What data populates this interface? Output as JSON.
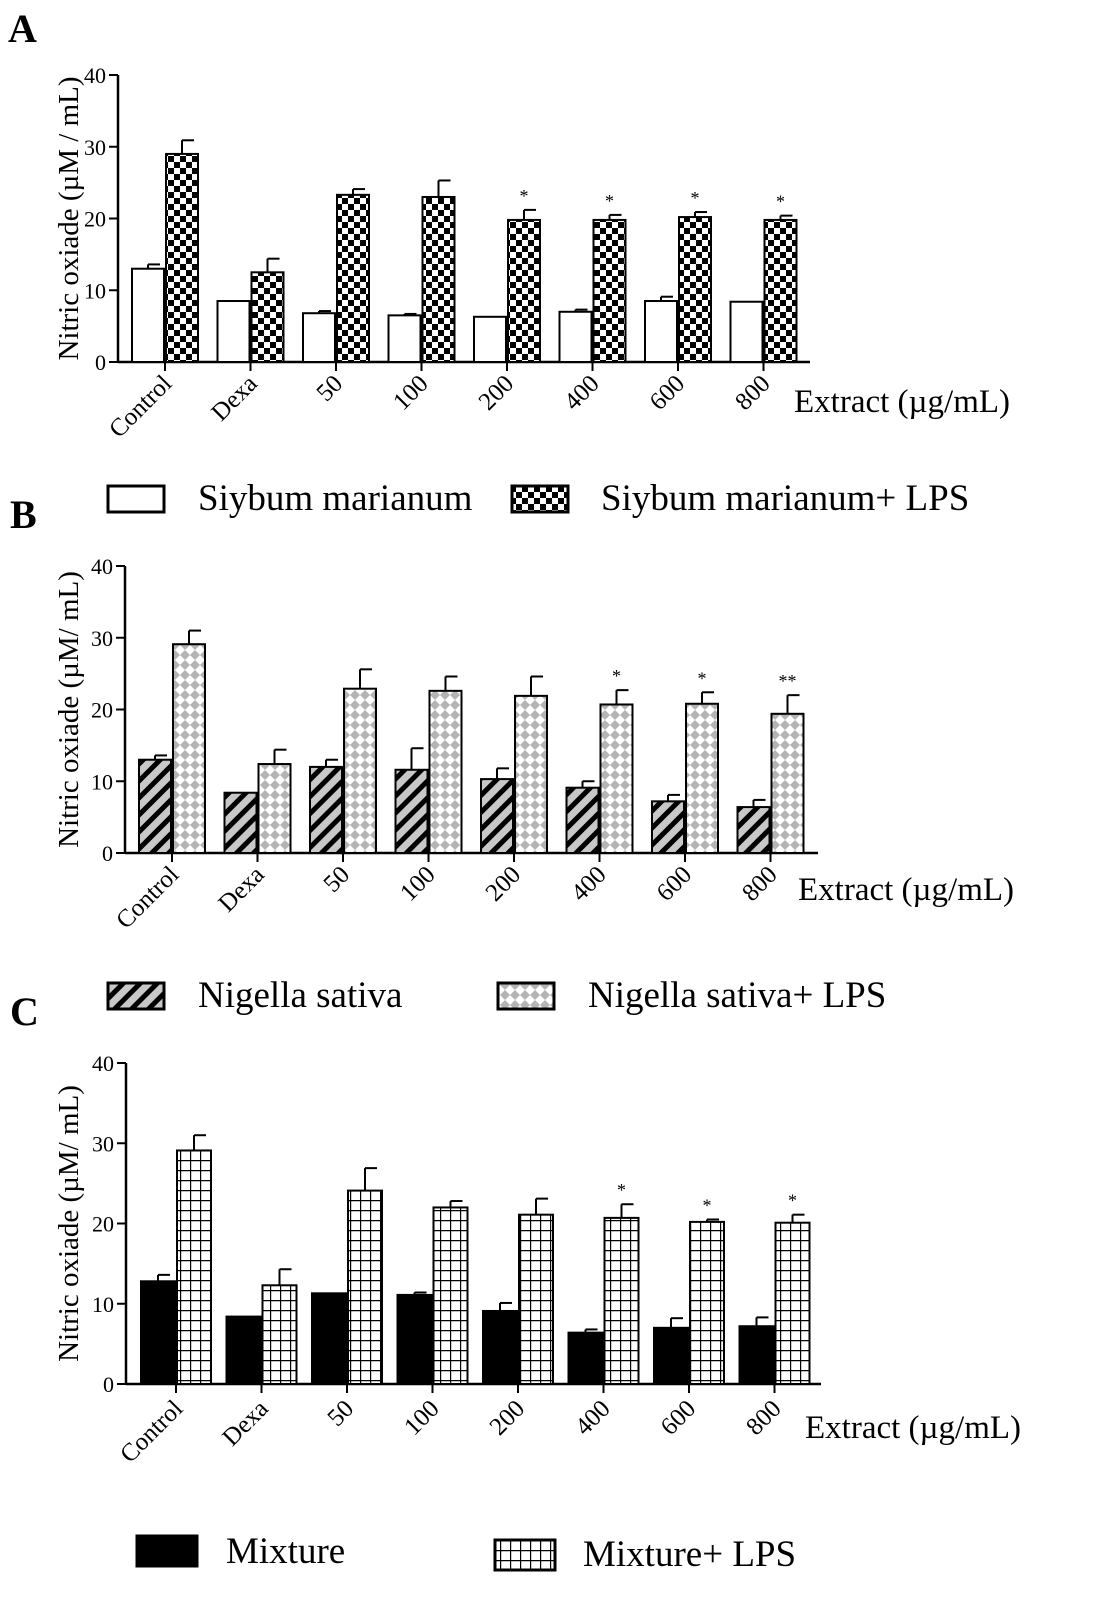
{
  "figure": {
    "panels": [
      {
        "letter": "A",
        "ylabel": "Nitric oxiade (µM / mL)",
        "yticks": [
          "0",
          "10",
          "20",
          "30",
          "40"
        ],
        "xunit": "Extract (µg/mL)",
        "legend": [
          "Siybum marianum",
          "Siybum marianum+ LPS"
        ]
      },
      {
        "letter": "B",
        "ylabel": "Nitric oxiade (µM/ mL)",
        "yticks": [
          "0",
          "10",
          "20",
          "30",
          "40"
        ],
        "xunit": "Extract (µg/mL)",
        "legend": [
          "Nigella sativa",
          "Nigella sativa+ LPS"
        ]
      },
      {
        "letter": "C",
        "ylabel": "Nitric oxiade (µM/ mL)",
        "yticks": [
          "0",
          "10",
          "20",
          "30",
          "40"
        ],
        "xunit": "Extract (µg/mL)",
        "legend": [
          "Mixture",
          "Mixture+ LPS"
        ]
      }
    ]
  },
  "chart_data": [
    {
      "type": "bar",
      "title": "A",
      "ylabel": "Nitric oxiade (µM / mL)",
      "xlabel": "Extract (µg/mL)",
      "ylim": [
        0,
        40
      ],
      "yticks": [
        0,
        10,
        20,
        30,
        40
      ],
      "categories": [
        "Control",
        "Dexa",
        "50",
        "100",
        "200",
        "400",
        "600",
        "800"
      ],
      "series": [
        {
          "name": "Siybum marianum",
          "pattern": "white",
          "values": [
            13,
            8.5,
            6.8,
            6.5,
            6.3,
            7.0,
            8.5,
            8.4
          ],
          "errors": [
            0.6,
            0,
            0.3,
            0.2,
            0,
            0.3,
            0.6,
            0
          ]
        },
        {
          "name": "Siybum marianum+ LPS",
          "pattern": "checker",
          "values": [
            29,
            12.5,
            23.3,
            23,
            19.8,
            19.8,
            20.2,
            19.8
          ],
          "errors": [
            1.9,
            1.9,
            0.8,
            2.3,
            1.4,
            0.7,
            0.7,
            0.6
          ]
        }
      ],
      "annotations": [
        "",
        "",
        "",
        "",
        "*",
        "*",
        "*",
        "*"
      ],
      "legend_position": "bottom"
    },
    {
      "type": "bar",
      "title": "B",
      "ylabel": "Nitric oxiade (µM/ mL)",
      "xlabel": "Extract (µg/mL)",
      "ylim": [
        0,
        40
      ],
      "yticks": [
        0,
        10,
        20,
        30,
        40
      ],
      "categories": [
        "Control",
        "Dexa",
        "50",
        "100",
        "200",
        "400",
        "600",
        "800"
      ],
      "series": [
        {
          "name": "Nigella sativa",
          "pattern": "hatch",
          "values": [
            13,
            8.4,
            12,
            11.6,
            10.3,
            9.1,
            7.2,
            6.4
          ],
          "errors": [
            0.6,
            0,
            1.0,
            3.0,
            1.5,
            0.9,
            0.9,
            1.0
          ]
        },
        {
          "name": "Nigella sativa+ LPS",
          "pattern": "diamond",
          "values": [
            29.1,
            12.4,
            22.9,
            22.6,
            21.9,
            20.7,
            20.8,
            19.4
          ],
          "errors": [
            1.9,
            2.0,
            2.7,
            2.0,
            2.7,
            2.0,
            1.6,
            2.6
          ]
        }
      ],
      "annotations": [
        "",
        "",
        "",
        "",
        "",
        "*",
        "*",
        "**"
      ],
      "legend_position": "bottom"
    },
    {
      "type": "bar",
      "title": "C",
      "ylabel": "Nitric oxiade (µM/ mL)",
      "xlabel": "Extract (µg/mL)",
      "ylim": [
        0,
        40
      ],
      "yticks": [
        0,
        10,
        20,
        30,
        40
      ],
      "categories": [
        "Control",
        "Dexa",
        "50",
        "100",
        "200",
        "400",
        "600",
        "800"
      ],
      "series": [
        {
          "name": "Mixture",
          "pattern": "black",
          "values": [
            12.8,
            8.4,
            11.3,
            11.1,
            9.1,
            6.4,
            7.0,
            7.2
          ],
          "errors": [
            0.8,
            0,
            0,
            0.3,
            1.0,
            0.4,
            1.2,
            1.1
          ]
        },
        {
          "name": "Mixture+ LPS",
          "pattern": "grid",
          "values": [
            29.1,
            12.3,
            24.1,
            22,
            21.1,
            20.7,
            20.2,
            20.1
          ],
          "errors": [
            1.9,
            2.0,
            2.8,
            0.8,
            2.0,
            1.7,
            0.3,
            1.0
          ]
        }
      ],
      "annotations": [
        "",
        "",
        "",
        "",
        "",
        "*",
        "*",
        "*"
      ],
      "legend_position": "bottom"
    }
  ]
}
